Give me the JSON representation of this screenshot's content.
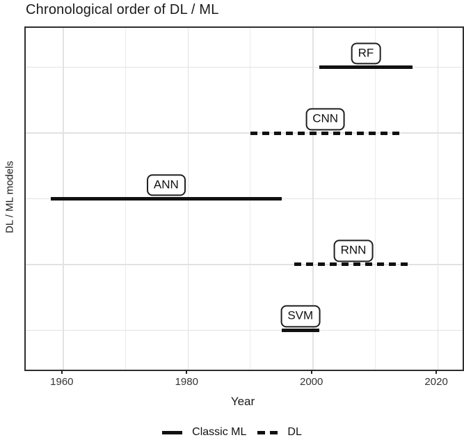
{
  "title": "Chronological order of DL / ML",
  "chart_data": {
    "type": "bar",
    "subtype": "horizontal-timeline",
    "title": "Chronological order of DL / ML",
    "xlabel": "Year",
    "ylabel": "DL / ML models",
    "xlim": [
      1954,
      2024
    ],
    "x_ticks": [
      1960,
      1980,
      2000,
      2020
    ],
    "x_grid_years": [
      1960,
      1970,
      1980,
      1990,
      2000,
      2010,
      2020
    ],
    "grid": true,
    "legend_position": "bottom",
    "series": [
      {
        "label": "RF",
        "start": 2001,
        "end": 2016,
        "style": "solid",
        "group": "Classic ML"
      },
      {
        "label": "CNN",
        "start": 1990,
        "end": 2014,
        "style": "dashed",
        "group": "DL"
      },
      {
        "label": "ANN",
        "start": 1958,
        "end": 1995,
        "style": "solid",
        "group": "Classic ML"
      },
      {
        "label": "RNN",
        "start": 1997,
        "end": 2016,
        "style": "dashed",
        "group": "DL"
      },
      {
        "label": "SVM",
        "start": 1995,
        "end": 2001,
        "style": "solid",
        "group": "Classic ML"
      }
    ],
    "legend": [
      {
        "label": "Classic ML",
        "style": "solid"
      },
      {
        "label": "DL",
        "style": "dashed"
      }
    ]
  },
  "colors": {
    "line": "#111111",
    "grid": "#e2e2e2",
    "grid_minor": "#ececec",
    "panel_border": "#2e2e2e",
    "text": "#1a1a1a",
    "tick_text": "#333333",
    "background": "#ffffff"
  }
}
